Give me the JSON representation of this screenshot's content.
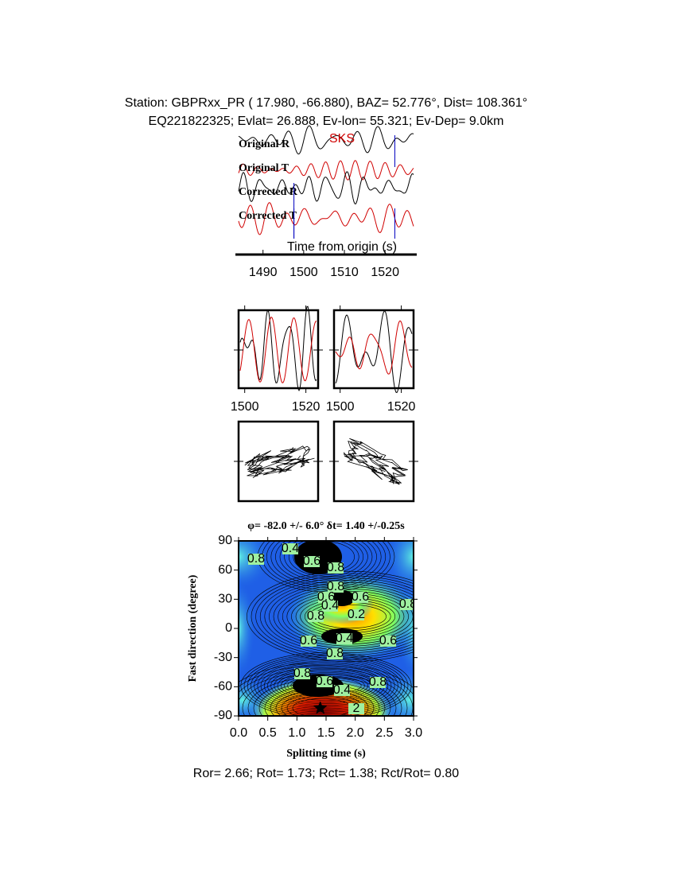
{
  "header": {
    "line1": "Station: GBPRxx_PR (  17.980,  -66.880), BAZ=   52.776°, Dist=  108.361°",
    "line2": "EQ221822325; Evlat=  26.888, Ev-lon=  55.321; Ev-Dep=  9.0km"
  },
  "chart_data": [
    {
      "type": "waveform",
      "x_label": "Time from origin (s)",
      "phase": "SKS",
      "traces": [
        "Original R",
        "Original T",
        "Corrected R",
        "Corrected T"
      ],
      "window": [
        1497.6,
        1522.4
      ],
      "xlim": [
        1484,
        1527
      ],
      "xticks": [
        1490,
        1500,
        1510,
        1520
      ]
    },
    {
      "type": "waveform-pair",
      "xlim": [
        1498,
        1524
      ],
      "xticks": [
        1500,
        1520
      ]
    },
    {
      "type": "waveform-pair",
      "xlim": [
        1498,
        1524
      ],
      "xticks": [
        1500,
        1520
      ]
    },
    {
      "type": "contour",
      "title": "φ= -82.0 +/- 6.0° δt= 1.40 +/-0.25s",
      "x_label": "Splitting time (s)",
      "y_label": "Fast direction (degree)",
      "xlim": [
        0,
        3
      ],
      "ylim": [
        -90,
        90
      ],
      "xticks": [
        {
          "value": 0,
          "label": "0.0"
        },
        0.5,
        {
          "value": 1,
          "label": "1.0"
        },
        1.5,
        {
          "value": 2,
          "label": "2.0"
        },
        2.5,
        {
          "value": 3,
          "label": "3.0"
        }
      ],
      "yticks": [
        90,
        60,
        30,
        0,
        -30,
        -60,
        -90
      ],
      "contour_labels": [
        0.4,
        0.6,
        0.8,
        0.8,
        0.8,
        0.6,
        0.6,
        0.4,
        0.2,
        0.8,
        0.6,
        0.4,
        0.6,
        0.8,
        0.8,
        0.6,
        0.4,
        0.8,
        2,
        0.8
      ],
      "best": {
        "x": 1.4,
        "y": -82
      }
    }
  ],
  "footer": "Ror= 2.66; Rot= 1.73; Rct= 1.38; Rct/Rot= 0.80"
}
